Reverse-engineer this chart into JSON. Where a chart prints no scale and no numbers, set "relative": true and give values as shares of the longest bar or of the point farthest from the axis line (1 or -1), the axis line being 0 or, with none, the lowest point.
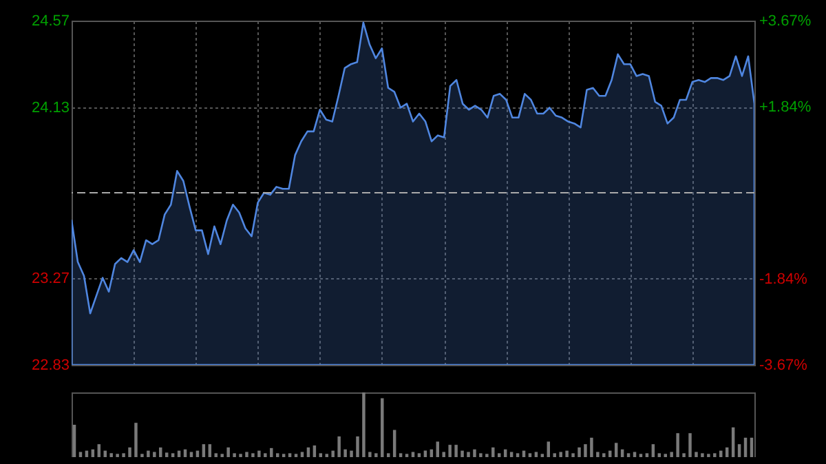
{
  "chart_data": [
    {
      "type": "area",
      "categories": [
        null,
        null,
        null,
        null,
        null,
        null,
        null,
        null,
        null,
        null,
        null,
        null,
        null,
        null,
        null,
        null,
        null,
        null,
        null,
        null,
        null,
        null,
        null,
        null,
        null,
        null,
        null,
        null,
        null,
        null,
        null,
        null,
        null,
        null,
        null,
        null,
        null,
        null,
        null,
        null,
        null,
        null,
        null,
        null,
        null,
        null,
        null,
        null,
        null,
        null,
        null,
        null,
        null,
        null,
        null,
        null,
        null,
        null,
        null,
        null,
        null,
        null,
        null,
        null,
        null,
        null,
        null,
        null,
        null,
        null,
        null,
        null,
        null,
        null,
        null,
        null,
        null,
        null,
        null,
        null,
        null,
        null,
        null,
        null,
        null,
        null,
        null,
        null,
        null,
        null,
        null,
        null,
        null,
        null,
        null,
        null,
        null,
        null,
        null,
        null,
        null,
        null,
        null,
        null,
        null,
        null,
        null,
        null,
        null,
        null,
        null
      ],
      "series": [
        {
          "color": "#4f86e0",
          "values": [
            23.56,
            23.35,
            23.28,
            23.09,
            23.18,
            23.27,
            23.2,
            23.34,
            23.37,
            23.35,
            23.41,
            23.35,
            23.46,
            23.44,
            23.46,
            23.59,
            23.64,
            23.81,
            23.76,
            23.63,
            23.51,
            23.51,
            23.39,
            23.53,
            23.44,
            23.56,
            23.64,
            23.6,
            23.52,
            23.48,
            23.65,
            23.7,
            23.69,
            23.73,
            23.72,
            23.72,
            23.89,
            23.96,
            24.01,
            24.01,
            24.12,
            24.07,
            24.06,
            24.19,
            24.33,
            24.35,
            24.36,
            24.56,
            24.45,
            24.38,
            24.43,
            24.23,
            24.21,
            24.13,
            24.15,
            24.06,
            24.1,
            24.06,
            23.96,
            23.99,
            23.98,
            24.24,
            24.27,
            24.15,
            24.12,
            24.14,
            24.12,
            24.08,
            24.19,
            24.2,
            24.17,
            24.08,
            24.08,
            24.2,
            24.17,
            24.1,
            24.1,
            24.13,
            24.09,
            24.08,
            24.06,
            24.05,
            24.03,
            24.22,
            24.23,
            24.19,
            24.19,
            24.27,
            24.4,
            24.35,
            24.35,
            24.29,
            24.3,
            24.29,
            24.16,
            24.14,
            24.05,
            24.08,
            24.17,
            24.17,
            24.26,
            24.27,
            24.26,
            24.28,
            24.28,
            24.27,
            24.29,
            24.39,
            24.29,
            24.39,
            24.15
          ]
        }
      ],
      "ylim": [
        22.83,
        24.57
      ],
      "yticks": [
        22.83,
        23.27,
        24.13,
        24.57
      ],
      "y2lim": [
        -3.67,
        3.67
      ],
      "y2ticks": [
        {
          "value": -3.67,
          "label": "-3.67%"
        },
        {
          "value": -1.84,
          "label": "-1.84%"
        },
        {
          "value": 1.84,
          "label": "+1.84%"
        },
        {
          "value": 3.67,
          "label": "+3.67%"
        }
      ],
      "ref_lines": [
        {
          "axis": "y",
          "value": 23.7,
          "line_style": "dashed"
        }
      ],
      "grid": true
    },
    {
      "type": "bar",
      "relative": true,
      "categories": [
        null,
        null,
        null,
        null,
        null,
        null,
        null,
        null,
        null,
        null,
        null,
        null,
        null,
        null,
        null,
        null,
        null,
        null,
        null,
        null,
        null,
        null,
        null,
        null,
        null,
        null,
        null,
        null,
        null,
        null,
        null,
        null,
        null,
        null,
        null,
        null,
        null,
        null,
        null,
        null,
        null,
        null,
        null,
        null,
        null,
        null,
        null,
        null,
        null,
        null,
        null,
        null,
        null,
        null,
        null,
        null,
        null,
        null,
        null,
        null,
        null,
        null,
        null,
        null,
        null,
        null,
        null,
        null,
        null,
        null,
        null,
        null,
        null,
        null,
        null,
        null,
        null,
        null,
        null,
        null,
        null,
        null,
        null,
        null,
        null,
        null,
        null,
        null,
        null,
        null,
        null,
        null,
        null,
        null,
        null,
        null,
        null,
        null,
        null,
        null,
        null,
        null,
        null,
        null,
        null,
        null,
        null,
        null,
        null,
        null,
        null
      ],
      "series": [
        {
          "color": "#7a7a7a",
          "values": [
            0.5,
            0.08,
            0.1,
            0.12,
            0.2,
            0.1,
            0.06,
            0.05,
            0.06,
            0.15,
            0.53,
            0.05,
            0.1,
            0.08,
            0.15,
            0.07,
            0.06,
            0.1,
            0.12,
            0.08,
            0.1,
            0.2,
            0.2,
            0.06,
            0.05,
            0.15,
            0.06,
            0.05,
            0.08,
            0.06,
            0.1,
            0.06,
            0.14,
            0.06,
            0.05,
            0.06,
            0.05,
            0.08,
            0.15,
            0.18,
            0.06,
            0.05,
            0.1,
            0.32,
            0.12,
            0.1,
            0.32,
            1.0,
            0.08,
            0.06,
            0.91,
            0.06,
            0.42,
            0.06,
            0.05,
            0.08,
            0.06,
            0.1,
            0.12,
            0.24,
            0.08,
            0.19,
            0.19,
            0.1,
            0.08,
            0.12,
            0.06,
            0.05,
            0.15,
            0.06,
            0.12,
            0.08,
            0.06,
            0.1,
            0.06,
            0.08,
            0.05,
            0.24,
            0.06,
            0.08,
            0.1,
            0.06,
            0.15,
            0.2,
            0.3,
            0.08,
            0.06,
            0.1,
            0.22,
            0.12,
            0.06,
            0.08,
            0.05,
            0.06,
            0.2,
            0.06,
            0.05,
            0.08,
            0.37,
            0.06,
            0.37,
            0.08,
            0.06,
            0.05,
            0.06,
            0.1,
            0.15,
            0.46,
            0.2,
            0.3,
            0.3
          ]
        }
      ]
    }
  ]
}
